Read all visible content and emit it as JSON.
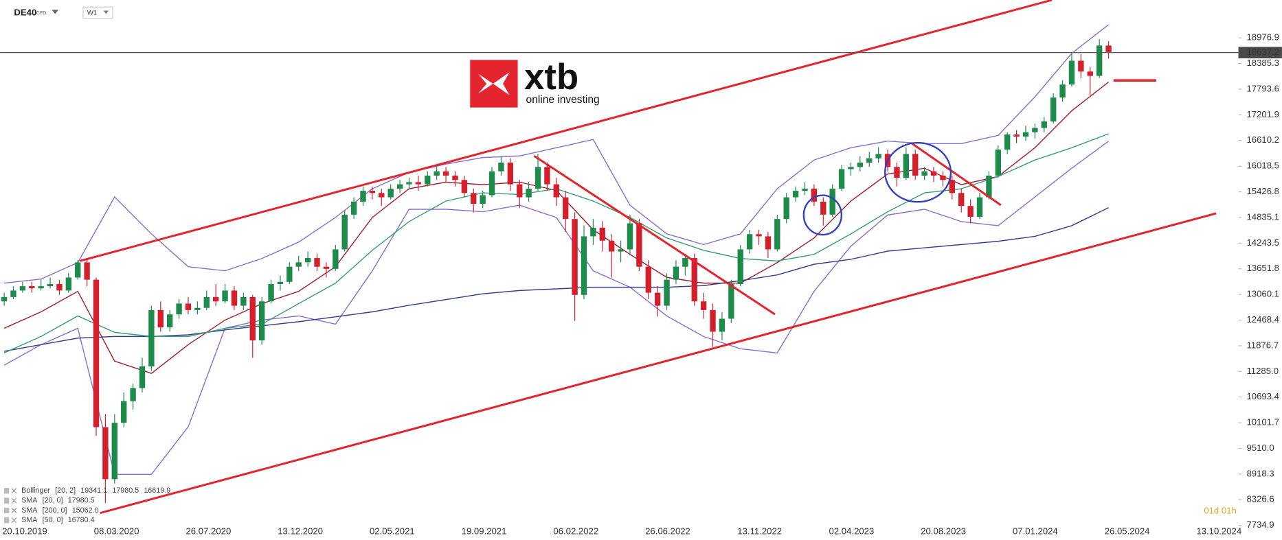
{
  "header": {
    "symbol": "DE40",
    "instrument": "CFD",
    "timeframe": "W1"
  },
  "logo": {
    "brand": "xtb",
    "tagline": "online investing"
  },
  "countdown": "01d 01h",
  "chart_data": {
    "type": "candlestick",
    "up_color": "#1e8a4c",
    "down_color": "#d4202c",
    "ylim": [
      7700,
      19850
    ],
    "yticks": [
      18976.9,
      18385.3,
      17793.6,
      17201.9,
      16610.2,
      16018.5,
      15426.8,
      14835.1,
      14243.5,
      13651.8,
      13060.1,
      12468.4,
      11876.7,
      {
        "value": 11285,
        "label": "11285.0"
      },
      10693.4,
      10101.7,
      {
        "value": 9510,
        "label": "9510.0"
      },
      8918.3,
      8326.6,
      7734.9
    ],
    "x_labels": [
      "20.10.2019",
      "08.03.2020",
      "26.07.2020",
      "13.12.2020",
      "02.05.2021",
      "19.09.2021",
      "06.02.2022",
      "26.06.2022",
      "13.11.2022",
      "02.04.2023",
      "20.08.2023",
      "07.01.2024",
      "26.05.2024",
      "13.10.2024"
    ],
    "last_price": 18637.2,
    "candles": [
      [
        12900,
        13100,
        12800,
        13000
      ],
      [
        13000,
        13250,
        12950,
        13150
      ],
      [
        13150,
        13350,
        13100,
        13250
      ],
      [
        13250,
        13350,
        13100,
        13200
      ],
      [
        13200,
        13400,
        13150,
        13250
      ],
      [
        13250,
        13450,
        13200,
        13300
      ],
      [
        13300,
        13400,
        13050,
        13150
      ],
      [
        13150,
        13550,
        13100,
        13450
      ],
      [
        13450,
        13850,
        13400,
        13800
      ],
      [
        13800,
        13900,
        13250,
        13400
      ],
      [
        13400,
        13450,
        9800,
        10000
      ],
      [
        10000,
        10300,
        8250,
        8800
      ],
      [
        8800,
        10300,
        8700,
        10100
      ],
      [
        10100,
        10800,
        10000,
        10600
      ],
      [
        10600,
        11000,
        10400,
        10900
      ],
      [
        10900,
        11600,
        10800,
        11400
      ],
      [
        11400,
        12800,
        11300,
        12700
      ],
      [
        12700,
        12900,
        12200,
        12300
      ],
      [
        12300,
        12700,
        12200,
        12600
      ],
      [
        12600,
        12950,
        12500,
        12850
      ],
      [
        12850,
        13000,
        12600,
        12700
      ],
      [
        12700,
        12900,
        12600,
        12750
      ],
      [
        12750,
        13150,
        12700,
        13000
      ],
      [
        13000,
        13300,
        12800,
        12900
      ],
      [
        12900,
        13300,
        12850,
        13150
      ],
      [
        13150,
        13250,
        12700,
        12800
      ],
      [
        12800,
        13100,
        12700,
        13000
      ],
      [
        13000,
        13050,
        11600,
        12000
      ],
      [
        12000,
        13000,
        11900,
        12900
      ],
      [
        12900,
        13400,
        12850,
        13300
      ],
      [
        13300,
        13500,
        13150,
        13350
      ],
      [
        13350,
        13800,
        13300,
        13700
      ],
      [
        13700,
        13950,
        13600,
        13800
      ],
      [
        13800,
        14050,
        13700,
        13900
      ],
      [
        13900,
        14000,
        13600,
        13700
      ],
      [
        13700,
        13800,
        13450,
        13650
      ],
      [
        13650,
        14200,
        13600,
        14100
      ],
      [
        14100,
        15000,
        14050,
        14900
      ],
      [
        14900,
        15300,
        14800,
        15200
      ],
      [
        15200,
        15550,
        15100,
        15450
      ],
      [
        15450,
        15550,
        15250,
        15400
      ],
      [
        15400,
        15500,
        15100,
        15300
      ],
      [
        15300,
        15600,
        15250,
        15500
      ],
      [
        15500,
        15700,
        15400,
        15600
      ],
      [
        15600,
        15750,
        15500,
        15650
      ],
      [
        15650,
        15800,
        15450,
        15600
      ],
      [
        15600,
        15900,
        15550,
        15800
      ],
      [
        15800,
        16000,
        15700,
        15900
      ],
      [
        15900,
        16000,
        15650,
        15800
      ],
      [
        15800,
        15900,
        15550,
        15700
      ],
      [
        15700,
        15800,
        15300,
        15400
      ],
      [
        15400,
        15500,
        14950,
        15150
      ],
      [
        15150,
        15450,
        15050,
        15350
      ],
      [
        15350,
        16000,
        15300,
        15900
      ],
      [
        15900,
        16250,
        15800,
        16100
      ],
      [
        16100,
        16200,
        15450,
        15600
      ],
      [
        15600,
        15700,
        15050,
        15300
      ],
      [
        15300,
        15650,
        15200,
        15500
      ],
      [
        15500,
        16300,
        15450,
        16000
      ],
      [
        16000,
        16100,
        15450,
        15600
      ],
      [
        15600,
        15750,
        15100,
        15300
      ],
      [
        15300,
        15450,
        14500,
        14800
      ],
      [
        14800,
        14950,
        12450,
        13050
      ],
      [
        13050,
        14650,
        12950,
        14400
      ],
      [
        14400,
        14800,
        14200,
        14600
      ],
      [
        14600,
        14750,
        14050,
        14300
      ],
      [
        14300,
        14450,
        13450,
        14050
      ],
      [
        14050,
        14300,
        13800,
        14100
      ],
      [
        14100,
        14900,
        14000,
        14700
      ],
      [
        14700,
        14800,
        13600,
        13700
      ],
      [
        13700,
        13850,
        12950,
        13100
      ],
      [
        13100,
        13250,
        12550,
        12800
      ],
      [
        12800,
        13550,
        12700,
        13400
      ],
      [
        13400,
        13850,
        13300,
        13700
      ],
      [
        13700,
        14000,
        13500,
        13900
      ],
      [
        13900,
        14000,
        12800,
        12900
      ],
      [
        12900,
        13100,
        12500,
        12700
      ],
      [
        12700,
        12850,
        11850,
        12200
      ],
      [
        12200,
        12650,
        12000,
        12500
      ],
      [
        12500,
        13400,
        12400,
        13300
      ],
      [
        13300,
        14200,
        13250,
        14100
      ],
      [
        14100,
        14550,
        14000,
        14450
      ],
      [
        14450,
        14550,
        14200,
        14400
      ],
      [
        14400,
        14500,
        13900,
        14100
      ],
      [
        14100,
        14900,
        14050,
        14800
      ],
      [
        14800,
        15400,
        14700,
        15300
      ],
      [
        15300,
        15550,
        15200,
        15450
      ],
      [
        15450,
        15650,
        15350,
        15500
      ],
      [
        15500,
        15600,
        15100,
        15200
      ],
      [
        15200,
        15300,
        14650,
        14900
      ],
      [
        14900,
        15600,
        14850,
        15500
      ],
      [
        15500,
        16050,
        15450,
        15950
      ],
      [
        15950,
        16100,
        15800,
        16000
      ],
      [
        16000,
        16250,
        15900,
        16100
      ],
      [
        16100,
        16350,
        16000,
        16200
      ],
      [
        16200,
        16450,
        16100,
        16300
      ],
      [
        16300,
        16400,
        15900,
        16000
      ],
      [
        16000,
        16100,
        15550,
        15750
      ],
      [
        15750,
        16450,
        15700,
        16300
      ],
      [
        16300,
        16400,
        15700,
        15800
      ],
      [
        15800,
        16000,
        15700,
        15900
      ],
      [
        15900,
        16000,
        15650,
        15800
      ],
      [
        15800,
        15900,
        15550,
        15700
      ],
      [
        15700,
        15800,
        15250,
        15400
      ],
      [
        15400,
        15500,
        14950,
        15100
      ],
      [
        15100,
        15250,
        14700,
        14850
      ],
      [
        14850,
        15400,
        14800,
        15300
      ],
      [
        15300,
        15900,
        15250,
        15800
      ],
      [
        15800,
        16500,
        15750,
        16400
      ],
      [
        16400,
        16800,
        16300,
        16750
      ],
      [
        16750,
        16850,
        16550,
        16700
      ],
      [
        16700,
        16950,
        16600,
        16800
      ],
      [
        16800,
        17000,
        16650,
        16900
      ],
      [
        16900,
        17150,
        16800,
        17050
      ],
      [
        17050,
        17700,
        17000,
        17600
      ],
      [
        17600,
        18000,
        17500,
        17900
      ],
      [
        17900,
        18600,
        17850,
        18450
      ],
      [
        18450,
        18600,
        18050,
        18200
      ],
      [
        18200,
        18300,
        17650,
        18100
      ],
      [
        18100,
        18950,
        18050,
        18800
      ],
      [
        18800,
        18900,
        18500,
        18650
      ]
    ],
    "indicators": [
      {
        "name": "Bollinger",
        "params": "[20, 2]",
        "readout": [
          19341.1,
          17980.5,
          16619.9
        ],
        "color": "#8b6fd3",
        "upper": [
          13321,
          13416,
          13794,
          15308,
          14456,
          13699,
          13605,
          13889,
          14267,
          14835,
          15497,
          15876,
          16065,
          16216,
          16254,
          16443,
          16633,
          15119,
          14456,
          14210,
          14456,
          15497,
          16160,
          16443,
          16595,
          16538,
          16538,
          16727,
          17617,
          18620,
          19282
        ],
        "lower": [
          11429,
          11902,
          12280,
          8911,
          8911,
          10009,
          12280,
          12469,
          12563,
          12375,
          13605,
          15024,
          15024,
          14967,
          15119,
          14835,
          13605,
          13226,
          12563,
          12091,
          11807,
          11712,
          13132,
          14172,
          14892,
          15024,
          14740,
          14646,
          15308,
          15970,
          16595
        ]
      },
      {
        "name": "SMA",
        "params": "[20, 0]",
        "readout": [
          17980.5
        ],
        "color": "#a3202c",
        "values": [
          12280,
          12659,
          13132,
          11523,
          11239,
          11902,
          12469,
          12848,
          13132,
          13699,
          14835,
          15497,
          15649,
          15592,
          15649,
          15459,
          14551,
          13983,
          13453,
          13321,
          13321,
          13794,
          14362,
          15214,
          15838,
          15970,
          15592,
          15781,
          16443,
          17295,
          17958
        ]
      },
      {
        "name": "SMA",
        "params": "[200, 0]",
        "readout": [
          {
            "value": 15062,
            "label": "15062.0"
          }
        ],
        "color": "#363c8c",
        "values": [
          11750,
          11901,
          12053,
          12091,
          12091,
          12129,
          12242,
          12337,
          12431,
          12545,
          12659,
          12810,
          12942,
          13075,
          13150,
          13188,
          13226,
          13226,
          13226,
          13264,
          13377,
          13510,
          13756,
          13870,
          14059,
          14135,
          14210,
          14286,
          14399,
          14646,
          15062
        ]
      },
      {
        "name": "SMA",
        "params": "[50, 0]",
        "readout": [
          16780.4
        ],
        "color": "#3a9e78",
        "values": [
          11712,
          12091,
          12563,
          12185,
          12091,
          12091,
          12280,
          12375,
          12848,
          13321,
          14078,
          14740,
          15214,
          15403,
          15365,
          15497,
          15214,
          14835,
          14362,
          14078,
          13889,
          13832,
          13983,
          14456,
          14967,
          15403,
          15497,
          15781,
          16160,
          16443,
          16765
        ]
      }
    ]
  }
}
